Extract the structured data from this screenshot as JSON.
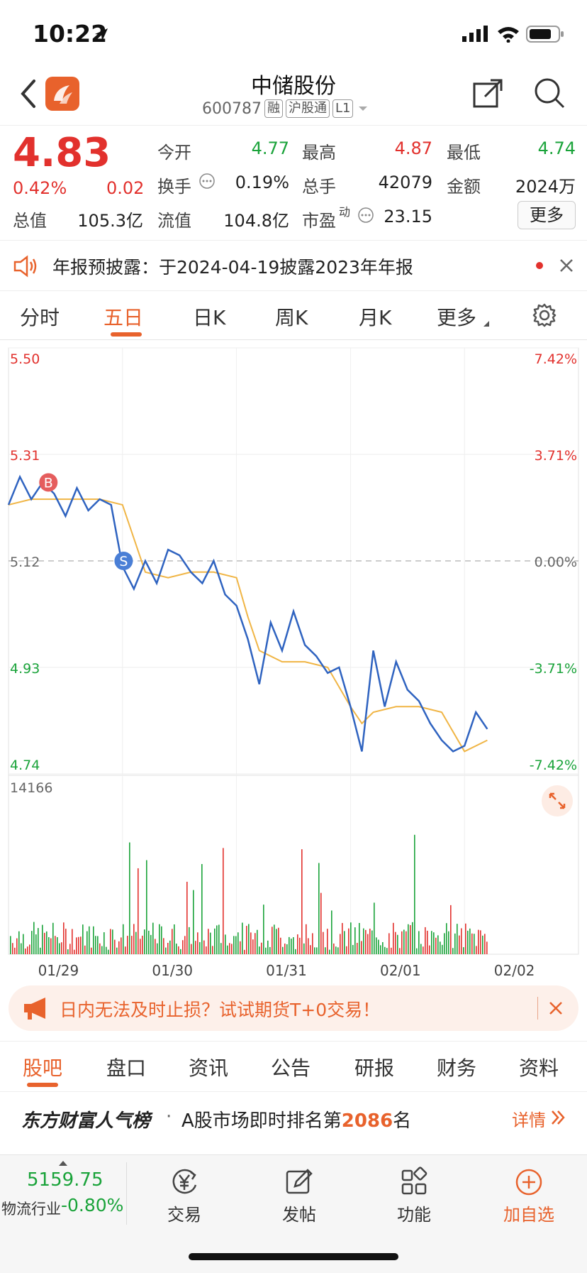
{
  "status_bar": {
    "time": "10:22"
  },
  "header": {
    "title": "中储股份",
    "code": "600787",
    "tags": [
      "融",
      "沪股通",
      "L1"
    ]
  },
  "quote": {
    "price": "4.83",
    "change_pct": "0.42%",
    "change": "0.02",
    "fields": [
      {
        "label": "今开",
        "value": "4.77",
        "color": "green"
      },
      {
        "label": "最高",
        "value": "4.87",
        "color": "red"
      },
      {
        "label": "最低",
        "value": "4.74",
        "color": "green"
      },
      {
        "label": "换手",
        "value": "0.19%",
        "color": "normal"
      },
      {
        "label": "总手",
        "value": "42079",
        "color": "normal"
      },
      {
        "label": "金额",
        "value": "2024万",
        "color": "normal"
      },
      {
        "label": "总值",
        "value": "105.3亿",
        "color": "normal"
      },
      {
        "label": "流值",
        "value": "104.8亿",
        "color": "normal"
      },
      {
        "label": "市盈",
        "value": "23.15",
        "color": "normal"
      }
    ],
    "pe_superscript": "动",
    "more_label": "更多"
  },
  "notice": {
    "text": "年报预披露：于2024-04-19披露2023年年报"
  },
  "chart_tabs": [
    "分时",
    "五日",
    "日K",
    "周K",
    "月K",
    "更多"
  ],
  "chart_tabs_active": 1,
  "chart_data": {
    "type": "line",
    "y_left_ticks": [
      "5.50",
      "5.31",
      "5.12",
      "4.93",
      "4.74"
    ],
    "y_right_ticks": [
      "7.42%",
      "3.71%",
      "0.00%",
      "-3.71%",
      "-7.42%"
    ],
    "ylim": [
      4.74,
      5.5
    ],
    "x_ticks": [
      "01/29",
      "01/30",
      "01/31",
      "02/01",
      "02/02"
    ],
    "volume_max_label": "14166",
    "markers": [
      {
        "label": "B",
        "x": 0.35,
        "price": 5.26
      },
      {
        "label": "S",
        "x": 1.01,
        "price": 5.12
      }
    ],
    "price_series": {
      "day_index": [
        0,
        0.1,
        0.2,
        0.3,
        0.4,
        0.5,
        0.6,
        0.7,
        0.8,
        0.9,
        1.0,
        1.1,
        1.2,
        1.3,
        1.4,
        1.5,
        1.6,
        1.7,
        1.8,
        1.9,
        2.0,
        2.1,
        2.2,
        2.3,
        2.4,
        2.5,
        2.6,
        2.7,
        2.8,
        2.9,
        3.0,
        3.1,
        3.2,
        3.3,
        3.4,
        3.5,
        3.6,
        3.7,
        3.8,
        3.9,
        4.0,
        4.1,
        4.2
      ],
      "values": [
        5.22,
        5.27,
        5.23,
        5.26,
        5.24,
        5.2,
        5.25,
        5.21,
        5.23,
        5.22,
        5.11,
        5.07,
        5.12,
        5.08,
        5.14,
        5.13,
        5.1,
        5.08,
        5.12,
        5.06,
        5.04,
        4.98,
        4.9,
        5.01,
        4.96,
        5.03,
        4.97,
        4.95,
        4.92,
        4.93,
        4.86,
        4.78,
        4.96,
        4.86,
        4.94,
        4.89,
        4.87,
        4.83,
        4.8,
        4.78,
        4.79,
        4.85,
        4.82
      ]
    },
    "avg_series": {
      "day_index": [
        0,
        0.2,
        0.4,
        0.6,
        0.8,
        1.0,
        1.2,
        1.4,
        1.6,
        1.8,
        2.0,
        2.1,
        2.2,
        2.4,
        2.6,
        2.8,
        3.0,
        3.1,
        3.2,
        3.4,
        3.6,
        3.8,
        4.0,
        4.2
      ],
      "values": [
        5.22,
        5.23,
        5.23,
        5.23,
        5.23,
        5.22,
        5.1,
        5.09,
        5.1,
        5.1,
        5.09,
        5.02,
        4.96,
        4.94,
        4.94,
        4.93,
        4.86,
        4.83,
        4.85,
        4.86,
        4.86,
        4.85,
        4.78,
        4.8
      ]
    }
  },
  "ad": {
    "text": "日内无法及时止损？试试期货T+0交易！"
  },
  "bottom_tabs": [
    "股吧",
    "盘口",
    "资讯",
    "公告",
    "研报",
    "财务",
    "资料"
  ],
  "rank": {
    "brand": "东方财富人气榜",
    "text_before": "A股市场即时排名第",
    "rank": "2086",
    "text_after": "名",
    "detail": "详情"
  },
  "index": {
    "value": "5159.75",
    "name": "物流行业",
    "change": "-0.80%"
  },
  "toolbar": [
    "交易",
    "发帖",
    "功能",
    "加自选"
  ]
}
